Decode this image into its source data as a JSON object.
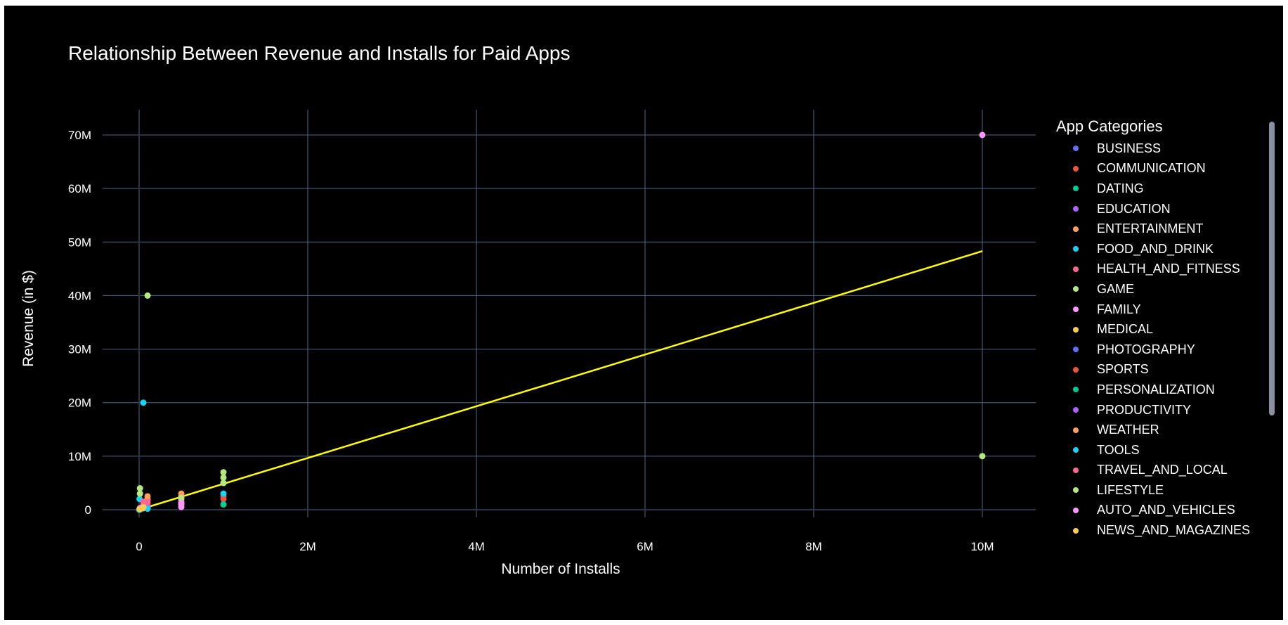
{
  "chart_data": {
    "type": "scatter",
    "title": "Relationship Between Revenue and Installs for Paid Apps",
    "xlabel": "Number of Installs",
    "ylabel": "Revenue (in $)",
    "xlim": [
      -500000,
      10600000
    ],
    "ylim": [
      -2500000,
      72500000
    ],
    "x_ticks": [
      {
        "value": 0,
        "label": "0"
      },
      {
        "value": 2000000,
        "label": "2M"
      },
      {
        "value": 4000000,
        "label": "4M"
      },
      {
        "value": 6000000,
        "label": "6M"
      },
      {
        "value": 8000000,
        "label": "8M"
      },
      {
        "value": 10000000,
        "label": "10M"
      }
    ],
    "y_ticks": [
      {
        "value": 0,
        "label": "0"
      },
      {
        "value": 10000000,
        "label": "10M"
      },
      {
        "value": 20000000,
        "label": "20M"
      },
      {
        "value": 30000000,
        "label": "30M"
      },
      {
        "value": 40000000,
        "label": "40M"
      },
      {
        "value": 50000000,
        "label": "50M"
      },
      {
        "value": 60000000,
        "label": "60M"
      },
      {
        "value": 70000000,
        "label": "70M"
      }
    ],
    "grid": true,
    "legend_title": "App Categories",
    "legend_position": "right",
    "trendline": {
      "color": "#ffff00",
      "x": [
        0,
        10000000
      ],
      "y": [
        0,
        48300000
      ]
    },
    "series": [
      {
        "name": "BUSINESS",
        "color": "#636efa",
        "points": [
          [
            1000,
            10000
          ],
          [
            5000,
            60000
          ],
          [
            10000,
            150000
          ],
          [
            50000,
            250000
          ]
        ]
      },
      {
        "name": "COMMUNICATION",
        "color": "#ef553b",
        "points": [
          [
            10000,
            100000
          ],
          [
            100000,
            500000
          ],
          [
            1000000,
            2000000
          ]
        ]
      },
      {
        "name": "DATING",
        "color": "#00cc96",
        "points": [
          [
            1000,
            5000
          ],
          [
            1000000,
            1000000
          ]
        ]
      },
      {
        "name": "EDUCATION",
        "color": "#ab63fa",
        "points": [
          [
            10000,
            50000
          ],
          [
            100000,
            400000
          ],
          [
            500000,
            1000000
          ]
        ]
      },
      {
        "name": "ENTERTAINMENT",
        "color": "#ffa15a",
        "points": [
          [
            100000,
            2500000
          ],
          [
            500000,
            3000000
          ]
        ]
      },
      {
        "name": "FOOD_AND_DRINK",
        "color": "#19d3f3",
        "points": [
          [
            5000,
            2000000
          ],
          [
            50000,
            20000000
          ],
          [
            100000,
            300000
          ]
        ]
      },
      {
        "name": "HEALTH_AND_FITNESS",
        "color": "#ff6692",
        "points": [
          [
            50000,
            1500000
          ],
          [
            100000,
            1000000
          ],
          [
            500000,
            1500000
          ]
        ]
      },
      {
        "name": "GAME",
        "color": "#b6e880",
        "points": [
          [
            10000,
            4000000
          ],
          [
            100000,
            40000000
          ],
          [
            1000000,
            7000000
          ],
          [
            1000000,
            6000000
          ],
          [
            10000000,
            10000000
          ]
        ]
      },
      {
        "name": "FAMILY",
        "color": "#ff97ff",
        "points": [
          [
            500000,
            500000
          ],
          [
            500000,
            1000000
          ],
          [
            500000,
            2000000
          ],
          [
            10000000,
            70000000
          ]
        ]
      },
      {
        "name": "MEDICAL",
        "color": "#fecb52",
        "points": [
          [
            5000,
            100000
          ],
          [
            50000,
            300000
          ],
          [
            1000000,
            5000000
          ]
        ]
      },
      {
        "name": "PHOTOGRAPHY",
        "color": "#636efa",
        "points": [
          [
            10000,
            200000
          ],
          [
            100000,
            600000
          ]
        ]
      },
      {
        "name": "SPORTS",
        "color": "#ef553b",
        "points": [
          [
            100000,
            1000000
          ],
          [
            1000000,
            2500000
          ]
        ]
      },
      {
        "name": "PERSONALIZATION",
        "color": "#00cc96",
        "points": [
          [
            10000,
            30000
          ],
          [
            100000,
            200000
          ],
          [
            1000000,
            1000000
          ]
        ]
      },
      {
        "name": "PRODUCTIVITY",
        "color": "#ab63fa",
        "points": [
          [
            10000,
            100000
          ],
          [
            100000,
            500000
          ],
          [
            500000,
            2500000
          ]
        ]
      },
      {
        "name": "WEATHER",
        "color": "#ffa15a",
        "points": [
          [
            100000,
            2000000
          ],
          [
            500000,
            2500000
          ]
        ]
      },
      {
        "name": "TOOLS",
        "color": "#19d3f3",
        "points": [
          [
            10000,
            50000
          ],
          [
            100000,
            200000
          ],
          [
            1000000,
            3000000
          ]
        ]
      },
      {
        "name": "TRAVEL_AND_LOCAL",
        "color": "#ff6692",
        "points": [
          [
            50000,
            1000000
          ],
          [
            100000,
            1500000
          ]
        ]
      },
      {
        "name": "LIFESTYLE",
        "color": "#b6e880",
        "points": [
          [
            10000,
            3000000
          ],
          [
            500000,
            2200000
          ],
          [
            1000000,
            5000000
          ]
        ]
      },
      {
        "name": "AUTO_AND_VEHICLES",
        "color": "#ff97ff",
        "points": [
          [
            10000,
            300000
          ],
          [
            500000,
            1200000
          ]
        ]
      },
      {
        "name": "NEWS_AND_MAGAZINES",
        "color": "#fecb52",
        "points": [
          [
            10000,
            100000
          ],
          [
            50000,
            500000
          ]
        ]
      }
    ]
  }
}
